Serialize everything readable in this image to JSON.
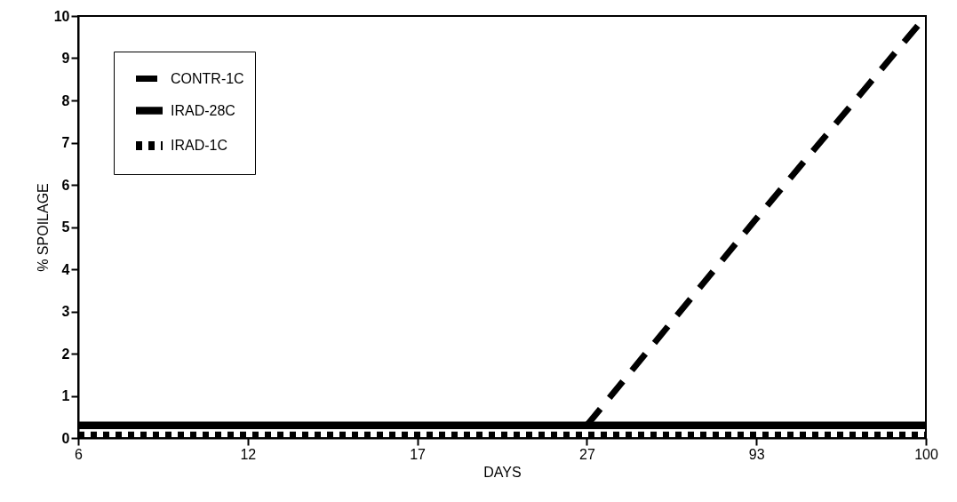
{
  "chart_data": {
    "type": "line",
    "xlabel": "DAYS",
    "ylabel": "% SPOILAGE",
    "categories": [
      "6",
      "12",
      "17",
      "27",
      "93",
      "100"
    ],
    "ylim": [
      0,
      10
    ],
    "yticks": [
      0,
      1,
      2,
      3,
      4,
      5,
      6,
      7,
      8,
      9,
      10
    ],
    "grid": false,
    "legend": "top left",
    "series": [
      {
        "name": "CONTR-1C",
        "color": "#000000",
        "line_style": "dashed",
        "values": [
          null,
          null,
          null,
          0.3,
          5.2,
          10
        ]
      },
      {
        "name": "IRAD-28C",
        "color": "#000000",
        "line_style": "solid",
        "values": [
          0.3,
          0.3,
          0.3,
          0.3,
          0.3,
          0.3
        ]
      },
      {
        "name": "IRAD-1C",
        "color": "#000000",
        "line_style": "dotted",
        "values": [
          0.05,
          0.05,
          0.05,
          0.05,
          0.05,
          0.05
        ]
      }
    ]
  }
}
